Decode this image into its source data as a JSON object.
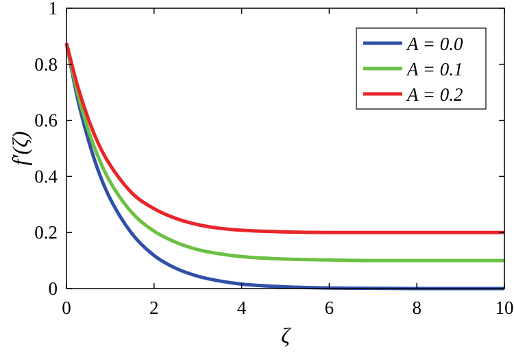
{
  "chart_data": {
    "type": "line",
    "title": "",
    "xlabel": "ζ",
    "ylabel": "f′(ζ)",
    "xlim": [
      0,
      10
    ],
    "ylim": [
      0,
      1
    ],
    "xticks": [
      0,
      2,
      4,
      6,
      8,
      10
    ],
    "yticks": [
      0,
      0.2,
      0.4,
      0.6,
      0.8,
      1
    ],
    "xtick_labels": [
      "0",
      "2",
      "4",
      "6",
      "8",
      "10"
    ],
    "ytick_labels": [
      "0",
      "0.2",
      "0.4",
      "0.6",
      "0.8",
      "1"
    ],
    "grid": false,
    "legend_position": "top-right",
    "x": [
      0,
      0.25,
      0.5,
      0.75,
      1,
      1.5,
      2,
      2.5,
      3,
      3.5,
      4,
      5,
      6,
      7,
      8,
      9,
      10
    ],
    "series": [
      {
        "name": "A = 0.0",
        "color": "#3050a8",
        "values": [
          0.875,
          0.68,
          0.53,
          0.41,
          0.32,
          0.195,
          0.118,
          0.072,
          0.044,
          0.027,
          0.016,
          0.006,
          0.002,
          0.001,
          0,
          0,
          0
        ]
      },
      {
        "name": "A = 0.1",
        "color": "#6cc044",
        "values": [
          0.875,
          0.7,
          0.565,
          0.46,
          0.38,
          0.27,
          0.205,
          0.165,
          0.139,
          0.124,
          0.114,
          0.105,
          0.102,
          0.1,
          0.1,
          0.1,
          0.1
        ]
      },
      {
        "name": "A = 0.2",
        "color": "#e8262a",
        "values": [
          0.875,
          0.725,
          0.605,
          0.51,
          0.44,
          0.34,
          0.285,
          0.25,
          0.228,
          0.215,
          0.208,
          0.202,
          0.2,
          0.2,
          0.2,
          0.2,
          0.2
        ]
      }
    ]
  }
}
